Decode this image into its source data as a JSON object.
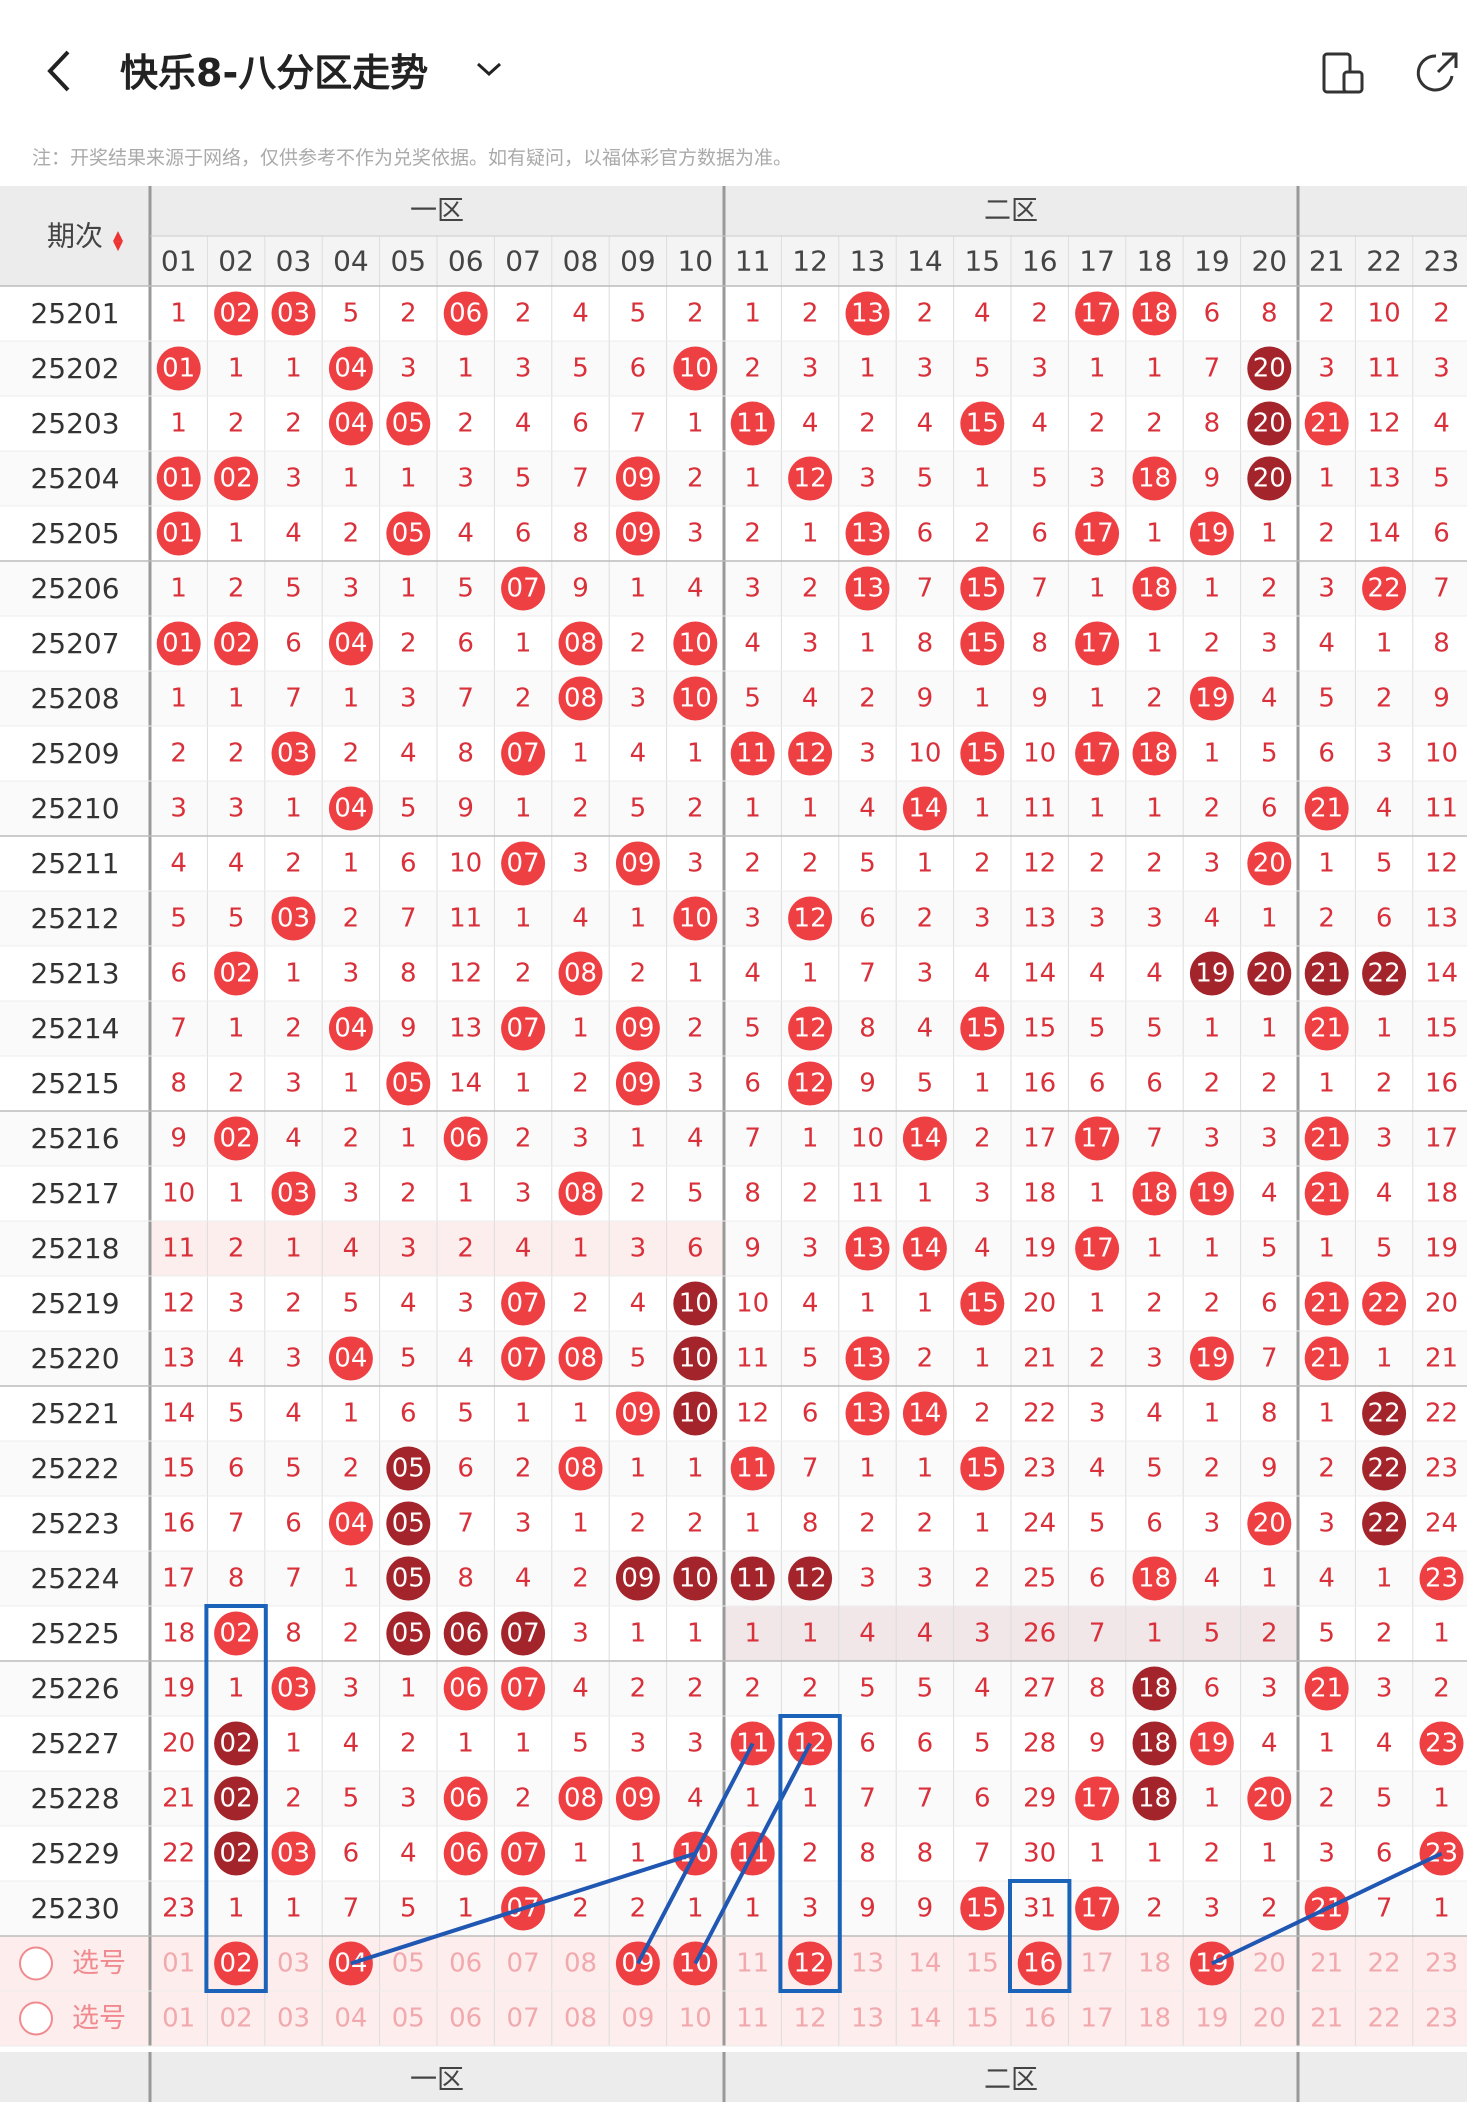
{
  "header": {
    "title": "快乐8-八分区走势",
    "note": "注：开奖结果来源于网络，仅供参考不作为兑奖依据。如有疑问，以福体彩官方数据为准。",
    "icons": [
      "back-arrow-icon",
      "chevron-down-icon",
      "split-view-icon",
      "share-icon"
    ]
  },
  "table": {
    "period_header": "期次",
    "sort_indicator": "▲▼",
    "zone_labels": [
      "一区",
      "二区"
    ],
    "columns": [
      "01",
      "02",
      "03",
      "04",
      "05",
      "06",
      "07",
      "08",
      "09",
      "10",
      "11",
      "12",
      "13",
      "14",
      "15",
      "16",
      "17",
      "18",
      "19",
      "20",
      "21",
      "22",
      "23"
    ],
    "rows": [
      {
        "period": "25201",
        "cells": [
          "1",
          "02",
          "03",
          "5",
          "2",
          "06",
          "2",
          "4",
          "5",
          "2",
          "1",
          "2",
          "13",
          "2",
          "4",
          "2",
          "17",
          "18",
          "6",
          "8",
          "2",
          "10",
          "2"
        ],
        "hits": [
          2,
          3,
          6,
          13,
          17,
          18
        ]
      },
      {
        "period": "25202",
        "cells": [
          "01",
          "1",
          "1",
          "04",
          "3",
          "1",
          "3",
          "5",
          "6",
          "10",
          "2",
          "3",
          "1",
          "3",
          "5",
          "3",
          "1",
          "1",
          "7",
          "20",
          "3",
          "11",
          "3"
        ],
        "hits": [
          1,
          4,
          10,
          20
        ]
      },
      {
        "period": "25203",
        "cells": [
          "1",
          "2",
          "2",
          "04",
          "05",
          "2",
          "4",
          "6",
          "7",
          "1",
          "11",
          "4",
          "2",
          "4",
          "15",
          "4",
          "2",
          "2",
          "8",
          "20",
          "21",
          "12",
          "4"
        ],
        "hits": [
          4,
          5,
          11,
          15,
          20,
          21
        ]
      },
      {
        "period": "25204",
        "cells": [
          "01",
          "02",
          "3",
          "1",
          "1",
          "3",
          "5",
          "7",
          "09",
          "2",
          "1",
          "12",
          "3",
          "5",
          "1",
          "5",
          "3",
          "18",
          "9",
          "20",
          "1",
          "13",
          "5"
        ],
        "hits": [
          1,
          2,
          9,
          12,
          18,
          20
        ]
      },
      {
        "period": "25205",
        "cells": [
          "01",
          "1",
          "4",
          "2",
          "05",
          "4",
          "6",
          "8",
          "09",
          "3",
          "2",
          "1",
          "13",
          "6",
          "2",
          "6",
          "17",
          "1",
          "19",
          "1",
          "2",
          "14",
          "6"
        ],
        "hits": [
          1,
          5,
          9,
          13,
          17,
          19
        ]
      },
      {
        "period": "25206",
        "cells": [
          "1",
          "2",
          "5",
          "3",
          "1",
          "5",
          "07",
          "9",
          "1",
          "4",
          "3",
          "2",
          "13",
          "7",
          "15",
          "7",
          "1",
          "18",
          "1",
          "2",
          "3",
          "22",
          "7"
        ],
        "hits": [
          7,
          13,
          15,
          18,
          22
        ]
      },
      {
        "period": "25207",
        "cells": [
          "01",
          "02",
          "6",
          "04",
          "2",
          "6",
          "1",
          "08",
          "2",
          "10",
          "4",
          "3",
          "1",
          "8",
          "15",
          "8",
          "17",
          "1",
          "2",
          "3",
          "4",
          "1",
          "8"
        ],
        "hits": [
          1,
          2,
          4,
          8,
          10,
          15,
          17
        ]
      },
      {
        "period": "25208",
        "cells": [
          "1",
          "1",
          "7",
          "1",
          "3",
          "7",
          "2",
          "08",
          "3",
          "10",
          "5",
          "4",
          "2",
          "9",
          "1",
          "9",
          "1",
          "2",
          "19",
          "4",
          "5",
          "2",
          "9"
        ],
        "hits": [
          8,
          10,
          19
        ]
      },
      {
        "period": "25209",
        "cells": [
          "2",
          "2",
          "03",
          "2",
          "4",
          "8",
          "07",
          "1",
          "4",
          "1",
          "11",
          "12",
          "3",
          "10",
          "15",
          "10",
          "17",
          "18",
          "1",
          "5",
          "6",
          "3",
          "10"
        ],
        "hits": [
          3,
          7,
          11,
          12,
          15,
          17,
          18
        ]
      },
      {
        "period": "25210",
        "cells": [
          "3",
          "3",
          "1",
          "04",
          "5",
          "9",
          "1",
          "2",
          "5",
          "2",
          "1",
          "1",
          "4",
          "14",
          "1",
          "11",
          "1",
          "1",
          "2",
          "6",
          "21",
          "4",
          "11"
        ],
        "hits": [
          4,
          14,
          21
        ]
      },
      {
        "period": "25211",
        "cells": [
          "4",
          "4",
          "2",
          "1",
          "6",
          "10",
          "07",
          "3",
          "09",
          "3",
          "2",
          "2",
          "5",
          "1",
          "2",
          "12",
          "2",
          "2",
          "3",
          "20",
          "1",
          "5",
          "12"
        ],
        "hits": [
          7,
          9,
          20
        ]
      },
      {
        "period": "25212",
        "cells": [
          "5",
          "5",
          "03",
          "2",
          "7",
          "11",
          "1",
          "4",
          "1",
          "10",
          "3",
          "12",
          "6",
          "2",
          "3",
          "13",
          "3",
          "3",
          "4",
          "1",
          "2",
          "6",
          "13"
        ],
        "hits": [
          3,
          10,
          12
        ]
      },
      {
        "period": "25213",
        "cells": [
          "6",
          "02",
          "1",
          "3",
          "8",
          "12",
          "2",
          "08",
          "2",
          "1",
          "4",
          "1",
          "7",
          "3",
          "4",
          "14",
          "4",
          "4",
          "19",
          "20",
          "21",
          "22",
          "14"
        ],
        "hits": [
          2,
          8,
          19,
          20,
          21,
          22
        ]
      },
      {
        "period": "25214",
        "cells": [
          "7",
          "1",
          "2",
          "04",
          "9",
          "13",
          "07",
          "1",
          "09",
          "2",
          "5",
          "12",
          "8",
          "4",
          "15",
          "15",
          "5",
          "5",
          "1",
          "1",
          "21",
          "1",
          "15"
        ],
        "hits": [
          4,
          7,
          9,
          12,
          15,
          21
        ]
      },
      {
        "period": "25215",
        "cells": [
          "8",
          "2",
          "3",
          "1",
          "05",
          "14",
          "1",
          "2",
          "09",
          "3",
          "6",
          "12",
          "9",
          "5",
          "1",
          "16",
          "6",
          "6",
          "2",
          "2",
          "1",
          "2",
          "16"
        ],
        "hits": [
          5,
          9,
          12
        ]
      },
      {
        "period": "25216",
        "cells": [
          "9",
          "02",
          "4",
          "2",
          "1",
          "06",
          "2",
          "3",
          "1",
          "4",
          "7",
          "1",
          "10",
          "14",
          "2",
          "17",
          "17",
          "7",
          "3",
          "3",
          "21",
          "3",
          "17"
        ],
        "hits": [
          2,
          6,
          14,
          17,
          21
        ]
      },
      {
        "period": "25217",
        "cells": [
          "10",
          "1",
          "03",
          "3",
          "2",
          "1",
          "3",
          "08",
          "2",
          "5",
          "8",
          "2",
          "11",
          "1",
          "3",
          "18",
          "1",
          "18",
          "19",
          "4",
          "21",
          "4",
          "18"
        ],
        "hits": [
          3,
          8,
          18,
          19,
          21
        ]
      },
      {
        "period": "25218",
        "cells": [
          "11",
          "2",
          "1",
          "4",
          "3",
          "2",
          "4",
          "1",
          "3",
          "6",
          "9",
          "3",
          "13",
          "14",
          "4",
          "19",
          "17",
          "1",
          "1",
          "5",
          "1",
          "5",
          "19"
        ],
        "hits": [
          13,
          14,
          17
        ]
      },
      {
        "period": "25219",
        "cells": [
          "12",
          "3",
          "2",
          "5",
          "4",
          "3",
          "07",
          "2",
          "4",
          "10",
          "10",
          "4",
          "1",
          "1",
          "15",
          "20",
          "1",
          "2",
          "2",
          "6",
          "21",
          "22",
          "20"
        ],
        "hits": [
          7,
          10,
          15,
          21,
          22
        ]
      },
      {
        "period": "25220",
        "cells": [
          "13",
          "4",
          "3",
          "04",
          "5",
          "4",
          "07",
          "08",
          "5",
          "10",
          "11",
          "5",
          "13",
          "2",
          "1",
          "21",
          "2",
          "3",
          "19",
          "7",
          "21",
          "1",
          "21"
        ],
        "hits": [
          4,
          7,
          8,
          10,
          13,
          19,
          21
        ]
      },
      {
        "period": "25221",
        "cells": [
          "14",
          "5",
          "4",
          "1",
          "6",
          "5",
          "1",
          "1",
          "09",
          "10",
          "12",
          "6",
          "13",
          "14",
          "2",
          "22",
          "3",
          "4",
          "1",
          "8",
          "1",
          "22",
          "22"
        ],
        "hits": [
          9,
          10,
          13,
          14,
          22
        ]
      },
      {
        "period": "25222",
        "cells": [
          "15",
          "6",
          "5",
          "2",
          "05",
          "6",
          "2",
          "08",
          "1",
          "1",
          "11",
          "7",
          "1",
          "1",
          "15",
          "23",
          "4",
          "5",
          "2",
          "9",
          "2",
          "22",
          "23"
        ],
        "hits": [
          5,
          8,
          11,
          15,
          22
        ]
      },
      {
        "period": "25223",
        "cells": [
          "16",
          "7",
          "6",
          "04",
          "05",
          "7",
          "3",
          "1",
          "2",
          "2",
          "1",
          "8",
          "2",
          "2",
          "1",
          "24",
          "5",
          "6",
          "3",
          "20",
          "3",
          "22",
          "24"
        ],
        "hits": [
          4,
          5,
          20,
          22
        ]
      },
      {
        "period": "25224",
        "cells": [
          "17",
          "8",
          "7",
          "1",
          "05",
          "8",
          "4",
          "2",
          "09",
          "10",
          "11",
          "12",
          "3",
          "3",
          "2",
          "25",
          "6",
          "18",
          "4",
          "1",
          "4",
          "1",
          "23"
        ],
        "hits": [
          5,
          9,
          10,
          11,
          12,
          18,
          23
        ]
      },
      {
        "period": "25225",
        "cells": [
          "18",
          "02",
          "8",
          "2",
          "05",
          "06",
          "07",
          "3",
          "1",
          "1",
          "1",
          "1",
          "4",
          "4",
          "3",
          "26",
          "7",
          "1",
          "5",
          "2",
          "5",
          "2",
          "1"
        ],
        "hits": [
          2,
          5,
          6,
          7
        ]
      },
      {
        "period": "25226",
        "cells": [
          "19",
          "1",
          "03",
          "3",
          "1",
          "06",
          "07",
          "4",
          "2",
          "2",
          "2",
          "2",
          "5",
          "5",
          "4",
          "27",
          "8",
          "18",
          "6",
          "3",
          "21",
          "3",
          "2"
        ],
        "hits": [
          3,
          6,
          7,
          18,
          21
        ]
      },
      {
        "period": "25227",
        "cells": [
          "20",
          "02",
          "1",
          "4",
          "2",
          "1",
          "1",
          "5",
          "3",
          "3",
          "11",
          "12",
          "6",
          "6",
          "5",
          "28",
          "9",
          "18",
          "19",
          "4",
          "1",
          "4",
          "23"
        ],
        "hits": [
          2,
          11,
          12,
          18,
          19,
          23
        ]
      },
      {
        "period": "25228",
        "cells": [
          "21",
          "02",
          "2",
          "5",
          "3",
          "06",
          "2",
          "08",
          "09",
          "4",
          "1",
          "1",
          "7",
          "7",
          "6",
          "29",
          "17",
          "18",
          "1",
          "20",
          "2",
          "5",
          "1"
        ],
        "hits": [
          2,
          6,
          8,
          9,
          17,
          18,
          20
        ]
      },
      {
        "period": "25229",
        "cells": [
          "22",
          "02",
          "03",
          "6",
          "4",
          "06",
          "07",
          "1",
          "1",
          "10",
          "11",
          "2",
          "8",
          "8",
          "7",
          "30",
          "1",
          "1",
          "2",
          "1",
          "3",
          "6",
          "23"
        ],
        "hits": [
          2,
          3,
          6,
          7,
          10,
          11,
          23
        ]
      },
      {
        "period": "25230",
        "cells": [
          "23",
          "1",
          "1",
          "7",
          "5",
          "1",
          "07",
          "2",
          "2",
          "1",
          "1",
          "3",
          "9",
          "9",
          "15",
          "31",
          "17",
          "2",
          "3",
          "2",
          "21",
          "7",
          "1"
        ],
        "hits": [
          7,
          15,
          17,
          21
        ]
      }
    ],
    "dark_hits": [
      "25202-20",
      "25203-20",
      "25204-20",
      "25213-19",
      "25213-20",
      "25213-21",
      "25213-22",
      "25219-10",
      "25220-10",
      "25221-10",
      "25221-22",
      "25222-05",
      "25222-22",
      "25223-05",
      "25223-22",
      "25224-05",
      "25224-09",
      "25224-10",
      "25224-11",
      "25224-12",
      "25225-05",
      "25225-06",
      "25225-07",
      "25226-18",
      "25227-02",
      "25227-18",
      "25228-02",
      "25228-18",
      "25229-02"
    ],
    "select_rows": [
      {
        "label": "选号",
        "hits": [
          2,
          4,
          9,
          10,
          12,
          16,
          19
        ]
      },
      {
        "label": "选号",
        "hits": []
      }
    ],
    "boxed": [
      {
        "col": 2,
        "from": "25225",
        "to": "select1"
      },
      {
        "col": 12,
        "from": "25227",
        "to": "select1"
      },
      {
        "col": 16,
        "from": "25230",
        "to": "select1"
      }
    ],
    "colors": {
      "hit": "#ee3f43",
      "dark_hit": "#a3242a",
      "number": "#d9303a",
      "select_number": "#f2a9ae",
      "box": "#1b63b8",
      "line": "#1f57b2",
      "header_bg": "#ececec"
    }
  }
}
